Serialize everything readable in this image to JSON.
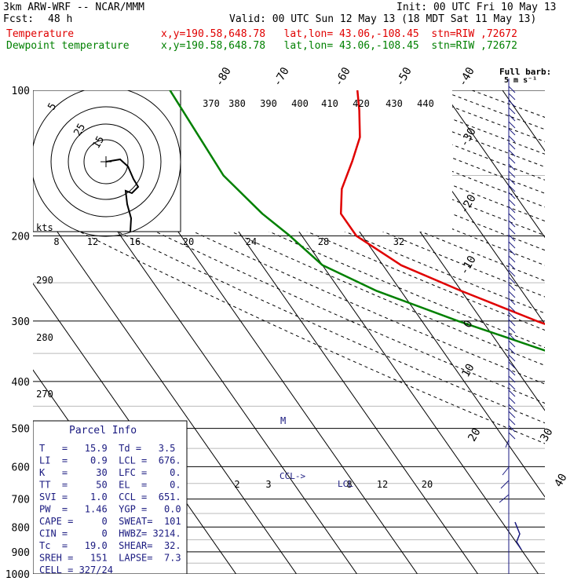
{
  "header": {
    "model": "3km ARW-WRF -- NCAR/MMM",
    "init": "Init: 00 UTC Fri 10 May 13",
    "fcst_label": "Fcst:",
    "fcst_value": "48 h",
    "valid": "Valid: 00 UTC Sun 12 May 13 (18 MDT Sat 11 May 13)"
  },
  "legend": {
    "temperature": {
      "name": "Temperature",
      "info": "x,y=190.58,648.78   lat,lon= 43.06,-108.45  stn=RIW ,72672",
      "color": "#e00000"
    },
    "dewpoint": {
      "name": "Dewpoint temperature",
      "info": "x,y=190.58,648.78   lat,lon= 43.06,-108.45  stn=RIW ,72672",
      "color": "#008000"
    }
  },
  "wind_key": {
    "title": "Full barb:",
    "value": "5 m s⁻¹"
  },
  "hodograph": {
    "unit_label": "kts",
    "ring_labels": [
      "5",
      "25",
      "15"
    ]
  },
  "parcel": {
    "title": "Parcel Info",
    "rows": [
      "T   =   15.9  Td =   3.5",
      "LI  =    0.9  LCL =  676.",
      "K   =     30  LFC =    0.",
      "TT  =     50  EL  =    0.",
      "SVI =    1.0  CCL =  651.",
      "PW  =   1.46  YGP =   0.0",
      "CAPE =     0  SWEAT=  101",
      "CIN =      0  HWBZ= 3214.",
      "Tc  =   19.0  SHEAR=  32.",
      "SREH =   151  LAPSE=  7.3",
      "CELL = 327/24"
    ]
  },
  "annotations": {
    "ccl": "CCL->",
    "lcl": "LCL",
    "marker": "M"
  },
  "chart_data": {
    "type": "line",
    "chart_kind": "skew-T log-p sounding diagram",
    "y_axis": {
      "label": "Pressure (hPa)",
      "scale": "log",
      "ticks": [
        100,
        200,
        300,
        400,
        500,
        600,
        700,
        800,
        900,
        1000
      ]
    },
    "isotherm_labels": [
      -80,
      -70,
      -60,
      -50,
      -40,
      -30,
      -20,
      -10,
      0,
      10,
      20,
      30,
      40
    ],
    "theta_labels": [
      370,
      380,
      390,
      400,
      410,
      420,
      430,
      440
    ],
    "theta_labels_left": [
      290,
      280,
      270
    ],
    "mixing_ratio_labels_upper": [
      8,
      12,
      16,
      20,
      24,
      28,
      32
    ],
    "mixing_ratio_labels_lower": [
      2,
      3,
      8,
      12,
      20
    ],
    "series": [
      {
        "name": "Temperature",
        "color": "#e00000",
        "points": [
          [
            100,
            -54
          ],
          [
            110,
            -56
          ],
          [
            125,
            -59
          ],
          [
            140,
            -63
          ],
          [
            160,
            -68
          ],
          [
            180,
            -71
          ],
          [
            200,
            -71
          ],
          [
            230,
            -67
          ],
          [
            260,
            -60
          ],
          [
            300,
            -51
          ],
          [
            350,
            -40
          ],
          [
            400,
            -31
          ],
          [
            450,
            -23
          ],
          [
            500,
            -16
          ],
          [
            550,
            -9
          ],
          [
            600,
            -4
          ],
          [
            650,
            2
          ],
          [
            700,
            7
          ],
          [
            750,
            11
          ],
          [
            800,
            14
          ],
          [
            850,
            16
          ]
        ]
      },
      {
        "name": "Dewpoint temperature",
        "color": "#008000",
        "points": [
          [
            100,
            -85
          ],
          [
            150,
            -86
          ],
          [
            180,
            -84
          ],
          [
            200,
            -82
          ],
          [
            230,
            -80
          ],
          [
            260,
            -74
          ],
          [
            300,
            -64
          ],
          [
            350,
            -52
          ],
          [
            400,
            -44
          ],
          [
            450,
            -39
          ],
          [
            500,
            -36
          ],
          [
            550,
            -32
          ],
          [
            580,
            -22
          ],
          [
            600,
            -15
          ],
          [
            650,
            -12
          ],
          [
            700,
            -9
          ],
          [
            750,
            -7
          ],
          [
            800,
            -4
          ],
          [
            830,
            -3
          ]
        ]
      }
    ]
  }
}
